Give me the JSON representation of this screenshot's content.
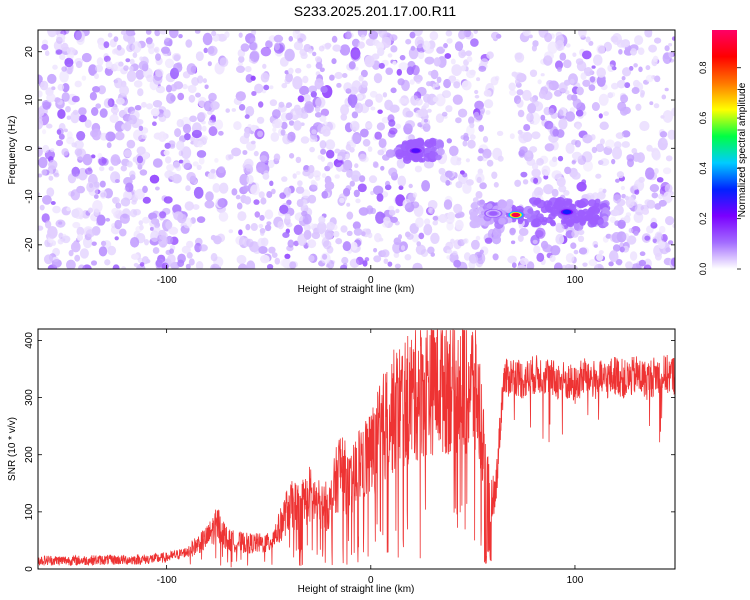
{
  "title": "S233.2025.201.17.00.R11",
  "colors": {
    "snr_line": "#ee3333",
    "frame": "#000000",
    "background": "#ffffff"
  },
  "chart_data": [
    {
      "type": "heatmap",
      "title": "",
      "xlabel": "Height of straight line (km)",
      "ylabel": "Frequency (Hz)",
      "xlim": [
        -163,
        149
      ],
      "ylim": [
        -25,
        24.5
      ],
      "xticks": [
        -100,
        0,
        100
      ],
      "xtick_labels": [
        "-100",
        "0",
        "100"
      ],
      "yticks": [
        -20,
        -10,
        0,
        10,
        20
      ],
      "ytick_labels": [
        "-20",
        "-10",
        "0",
        "10",
        "20"
      ],
      "colorbar": {
        "label": "Normalized spectral amplitude",
        "range": [
          0,
          0.95
        ],
        "ticks": [
          0,
          0.2,
          0.4,
          0.6,
          0.8
        ],
        "tick_labels": [
          "0.0",
          "0.2",
          "0.4",
          "0.6",
          "0.8"
        ],
        "colormap": [
          "#ffffff",
          "#a36cff",
          "#7a00ff",
          "#0022ff",
          "#00ccff",
          "#00ff44",
          "#ffff00",
          "#ff7700",
          "#ff0000",
          "#ff0066"
        ]
      },
      "background_level": 0.05,
      "features": [
        {
          "x": 22,
          "y": -0.5,
          "amplitude": 0.25,
          "extent_x": 25,
          "extent_y": 2
        },
        {
          "x": 71,
          "y": -13.8,
          "amplitude": 0.92,
          "extent_x": 8,
          "extent_y": 1.5
        },
        {
          "x": 96,
          "y": -13.2,
          "amplitude": 0.3,
          "extent_x": 40,
          "extent_y": 2.5
        },
        {
          "x": 60,
          "y": -13.5,
          "amplitude": 0.12,
          "extent_x": 20,
          "extent_y": 2.5
        }
      ]
    },
    {
      "type": "line",
      "title": "",
      "xlabel": "Height of straight line (km)",
      "ylabel": "SNR (10 * v/v)",
      "xlim": [
        -163,
        149
      ],
      "ylim": [
        0,
        420
      ],
      "xticks": [
        -100,
        0,
        100
      ],
      "xtick_labels": [
        "-100",
        "0",
        "100"
      ],
      "yticks": [
        0,
        100,
        200,
        300,
        400
      ],
      "ytick_labels": [
        "0",
        "100",
        "200",
        "300",
        "400"
      ],
      "series": [
        {
          "color": "#ee3333",
          "x": [
            -163,
            -150,
            -140,
            -130,
            -120,
            -110,
            -100,
            -90,
            -80,
            -75,
            -70,
            -60,
            -50,
            -45,
            -40,
            -35,
            -30,
            -25,
            -20,
            -15,
            -10,
            -5,
            0,
            5,
            10,
            15,
            20,
            25,
            30,
            35,
            40,
            45,
            50,
            52,
            55,
            57,
            58,
            60,
            61,
            65,
            70,
            75,
            80,
            85,
            90,
            95,
            100,
            105,
            110,
            115,
            120,
            125,
            130,
            135,
            140,
            145,
            149
          ],
          "y": [
            15,
            15,
            15,
            16,
            16,
            17,
            20,
            30,
            55,
            80,
            50,
            45,
            45,
            70,
            110,
            110,
            130,
            110,
            110,
            180,
            140,
            190,
            200,
            240,
            270,
            290,
            300,
            320,
            330,
            330,
            330,
            330,
            320,
            300,
            240,
            150,
            120,
            130,
            130,
            330,
            340,
            330,
            340,
            340,
            330,
            330,
            320,
            340,
            330,
            330,
            340,
            330,
            340,
            330,
            340,
            340,
            340
          ]
        }
      ]
    }
  ]
}
